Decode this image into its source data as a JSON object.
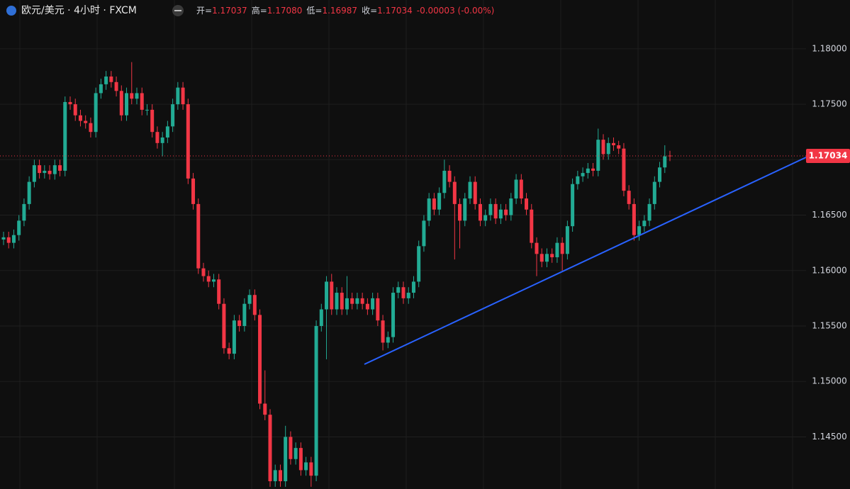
{
  "header": {
    "symbol": "欧元/美元 · 4小时 · FXCM",
    "fields": [
      {
        "label": "开=",
        "value": "1.17037"
      },
      {
        "label": "高=",
        "value": "1.17080"
      },
      {
        "label": "低=",
        "value": "1.16987"
      },
      {
        "label": "收=",
        "value": "1.17034"
      }
    ],
    "change": "-0.00003 (-0.00%)"
  },
  "chart_data": {
    "type": "candlestick",
    "up_color": "#22ab94",
    "down_color": "#f23645",
    "grid": true,
    "ylim": [
      1.1403,
      1.1844
    ],
    "yticks": [
      {
        "value": 1.145,
        "label": "1.14500"
      },
      {
        "value": 1.15,
        "label": "1.15000"
      },
      {
        "value": 1.155,
        "label": "1.15500"
      },
      {
        "value": 1.16,
        "label": "1.16000"
      },
      {
        "value": 1.165,
        "label": "1.16500"
      },
      {
        "value": 1.17,
        "label": "1.17000"
      },
      {
        "value": 1.175,
        "label": "1.17500"
      },
      {
        "value": 1.18,
        "label": "1.18000"
      }
    ],
    "last_price": {
      "value": 1.17034,
      "label": "1.17034"
    },
    "open": [
      1.1628,
      1.163,
      1.1625,
      1.1632,
      1.1645,
      1.166,
      1.168,
      1.1695,
      1.1688,
      1.169,
      1.1687,
      1.1695,
      1.169,
      1.1752,
      1.175,
      1.174,
      1.1735,
      1.1733,
      1.1725,
      1.176,
      1.1768,
      1.1775,
      1.177,
      1.1762,
      1.174,
      1.176,
      1.1755,
      1.176,
      1.1745,
      1.1745,
      1.1725,
      1.1715,
      1.172,
      1.173,
      1.175,
      1.1765,
      1.175,
      1.1683,
      1.166,
      1.1602,
      1.1595,
      1.159,
      1.1592,
      1.157,
      1.153,
      1.1525,
      1.1555,
      1.155,
      1.157,
      1.1578,
      1.156,
      1.148,
      1.147,
      1.141,
      1.142,
      1.141,
      1.145,
      1.143,
      1.144,
      1.142,
      1.1427,
      1.1415,
      1.155,
      1.1565,
      1.159,
      1.1565,
      1.158,
      1.1565,
      1.1575,
      1.157,
      1.1575,
      1.157,
      1.1565,
      1.1575,
      1.1555,
      1.1535,
      1.154,
      1.158,
      1.1585,
      1.1575,
      1.158,
      1.159,
      1.1622,
      1.1645,
      1.1665,
      1.1655,
      1.167,
      1.169,
      1.168,
      1.166,
      1.1645,
      1.1665,
      1.168,
      1.166,
      1.1645,
      1.165,
      1.166,
      1.1647,
      1.1655,
      1.165,
      1.1665,
      1.1682,
      1.1665,
      1.1655,
      1.1625,
      1.1615,
      1.1608,
      1.1615,
      1.1612,
      1.1625,
      1.1615,
      1.164,
      1.1678,
      1.1685,
      1.1688,
      1.1692,
      1.169,
      1.1718,
      1.1705,
      1.1715,
      1.1713,
      1.171,
      1.1672,
      1.166,
      1.1632,
      1.164,
      1.1645,
      1.166,
      1.168,
      1.1693,
      1.17037
    ],
    "high": [
      1.1635,
      1.1635,
      1.1637,
      1.165,
      1.1665,
      1.1685,
      1.17,
      1.17,
      1.1695,
      1.1695,
      1.17,
      1.17,
      1.1757,
      1.1757,
      1.1755,
      1.1745,
      1.174,
      1.1738,
      1.1765,
      1.1773,
      1.178,
      1.178,
      1.1775,
      1.1767,
      1.1765,
      1.1788,
      1.1765,
      1.1765,
      1.175,
      1.175,
      1.173,
      1.1725,
      1.1735,
      1.1755,
      1.177,
      1.177,
      1.1755,
      1.1688,
      1.1665,
      1.1607,
      1.16,
      1.1597,
      1.1597,
      1.1575,
      1.1535,
      1.156,
      1.156,
      1.1575,
      1.1583,
      1.1583,
      1.1565,
      1.151,
      1.1475,
      1.1425,
      1.1425,
      1.146,
      1.1455,
      1.1445,
      1.1445,
      1.1432,
      1.1432,
      1.1555,
      1.157,
      1.1595,
      1.1597,
      1.1585,
      1.1585,
      1.1595,
      1.158,
      1.158,
      1.158,
      1.1575,
      1.158,
      1.158,
      1.156,
      1.1545,
      1.1585,
      1.159,
      1.159,
      1.1585,
      1.1595,
      1.1627,
      1.165,
      1.167,
      1.167,
      1.1675,
      1.17,
      1.1695,
      1.1685,
      1.1665,
      1.167,
      1.1685,
      1.1685,
      1.1665,
      1.1655,
      1.1665,
      1.1665,
      1.166,
      1.166,
      1.167,
      1.1687,
      1.1687,
      1.167,
      1.166,
      1.163,
      1.162,
      1.162,
      1.162,
      1.163,
      1.163,
      1.1645,
      1.1683,
      1.169,
      1.1693,
      1.1697,
      1.1697,
      1.1728,
      1.1723,
      1.172,
      1.172,
      1.1717,
      1.1715,
      1.1677,
      1.1665,
      1.1645,
      1.165,
      1.1665,
      1.1685,
      1.1698,
      1.1713,
      1.1708
    ],
    "low": [
      1.1623,
      1.162,
      1.162,
      1.1627,
      1.164,
      1.1655,
      1.1675,
      1.1683,
      1.1683,
      1.1682,
      1.1682,
      1.1685,
      1.1685,
      1.1745,
      1.1735,
      1.173,
      1.1728,
      1.172,
      1.172,
      1.1755,
      1.1763,
      1.1765,
      1.1757,
      1.1735,
      1.1735,
      1.175,
      1.175,
      1.174,
      1.174,
      1.172,
      1.171,
      1.1703,
      1.1715,
      1.1725,
      1.1745,
      1.1745,
      1.1678,
      1.1655,
      1.1597,
      1.159,
      1.1585,
      1.1585,
      1.1565,
      1.1525,
      1.152,
      1.152,
      1.1545,
      1.1545,
      1.1565,
      1.1555,
      1.1475,
      1.1465,
      1.1405,
      1.1405,
      1.1405,
      1.1405,
      1.1425,
      1.1425,
      1.1415,
      1.1415,
      1.1405,
      1.141,
      1.1545,
      1.152,
      1.156,
      1.156,
      1.156,
      1.156,
      1.1565,
      1.1565,
      1.1565,
      1.156,
      1.156,
      1.155,
      1.1528,
      1.153,
      1.1535,
      1.1575,
      1.157,
      1.157,
      1.1575,
      1.1585,
      1.1617,
      1.164,
      1.165,
      1.165,
      1.1665,
      1.1675,
      1.161,
      1.162,
      1.164,
      1.166,
      1.1655,
      1.164,
      1.164,
      1.1645,
      1.1642,
      1.1642,
      1.1645,
      1.1645,
      1.166,
      1.166,
      1.165,
      1.162,
      1.1595,
      1.1603,
      1.1603,
      1.1607,
      1.1607,
      1.16,
      1.161,
      1.1635,
      1.1673,
      1.168,
      1.1683,
      1.1685,
      1.1685,
      1.17,
      1.17,
      1.1708,
      1.1705,
      1.1667,
      1.1655,
      1.1627,
      1.1627,
      1.1635,
      1.164,
      1.1655,
      1.1675,
      1.1688,
      1.16987
    ],
    "close": [
      1.163,
      1.1625,
      1.1632,
      1.1645,
      1.166,
      1.168,
      1.1695,
      1.1688,
      1.169,
      1.1687,
      1.1695,
      1.169,
      1.1752,
      1.175,
      1.174,
      1.1735,
      1.1733,
      1.1725,
      1.176,
      1.1768,
      1.1775,
      1.177,
      1.1762,
      1.174,
      1.176,
      1.1755,
      1.176,
      1.1745,
      1.1745,
      1.1725,
      1.1715,
      1.172,
      1.173,
      1.175,
      1.1765,
      1.175,
      1.1683,
      1.166,
      1.1602,
      1.1595,
      1.159,
      1.1592,
      1.157,
      1.153,
      1.1525,
      1.1555,
      1.155,
      1.157,
      1.1578,
      1.156,
      1.148,
      1.147,
      1.141,
      1.142,
      1.141,
      1.145,
      1.143,
      1.144,
      1.142,
      1.1427,
      1.1415,
      1.155,
      1.1565,
      1.159,
      1.1565,
      1.158,
      1.1565,
      1.1575,
      1.157,
      1.1575,
      1.157,
      1.1565,
      1.1575,
      1.1555,
      1.1535,
      1.154,
      1.158,
      1.1585,
      1.1575,
      1.158,
      1.159,
      1.1622,
      1.1645,
      1.1665,
      1.1655,
      1.167,
      1.169,
      1.168,
      1.166,
      1.1645,
      1.1665,
      1.168,
      1.166,
      1.1645,
      1.165,
      1.166,
      1.1647,
      1.1655,
      1.165,
      1.1665,
      1.1682,
      1.1665,
      1.1655,
      1.1625,
      1.1615,
      1.1608,
      1.1615,
      1.1612,
      1.1625,
      1.1615,
      1.164,
      1.1678,
      1.1685,
      1.1688,
      1.1692,
      1.169,
      1.1718,
      1.1705,
      1.1715,
      1.1713,
      1.171,
      1.1672,
      1.166,
      1.1632,
      1.164,
      1.1645,
      1.166,
      1.168,
      1.1693,
      1.1703,
      1.17034
    ]
  }
}
